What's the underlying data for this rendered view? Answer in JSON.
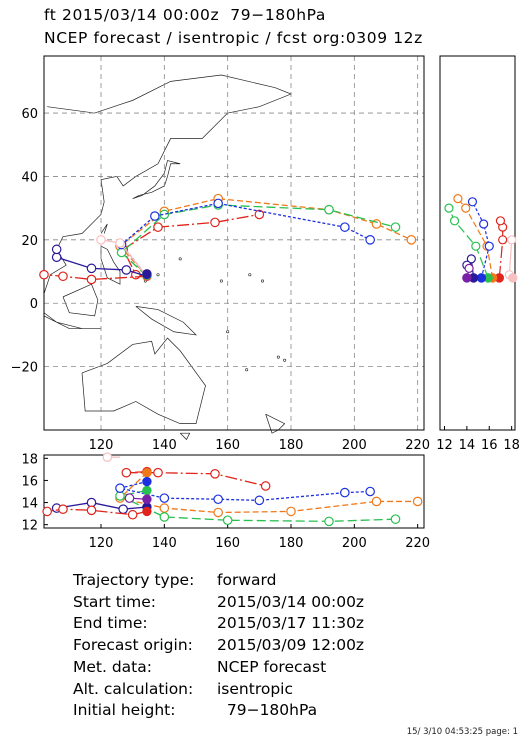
{
  "header": {
    "line1": "ft 2015/03/14 00:00z  79−180hPa",
    "line2": "NCEP forecast / isentropic / fcst org:0309 12z"
  },
  "info": [
    {
      "label": "Trajectory type:",
      "value": "forward"
    },
    {
      "label": "Start time:",
      "value": "2015/03/14 00:00z"
    },
    {
      "label": "End time:",
      "value": "2015/03/17 11:30z"
    },
    {
      "label": "Forecast origin:",
      "value": "2015/03/09 12:00z"
    },
    {
      "label": "Met. data:",
      "value": "NCEP forecast"
    },
    {
      "label": "Alt. calculation:",
      "value": "isentropic"
    },
    {
      "label": "Initial height:",
      "value": "  79−180hPa"
    }
  ],
  "footer": "15/ 3/10 04:53:25 page: 1",
  "colors": {
    "red": "#e0241c",
    "orange": "#f07818",
    "green": "#28c050",
    "blue": "#1c30e0",
    "navy": "#2a1a9a",
    "purple": "#7a20a8",
    "pink": "#f8c0c0"
  },
  "chart_data": [
    {
      "type": "line",
      "title": "map panel (trajectories over lon/lat)",
      "x_ticks": [
        120,
        140,
        160,
        180,
        200,
        220
      ],
      "y_ticks": [
        -20,
        0,
        20,
        40,
        60
      ],
      "xlim": [
        102,
        222
      ],
      "ylim": [
        -40,
        78
      ],
      "grid": true,
      "series": [
        {
          "color": "red",
          "points": [
            [
              134.5,
              8.5
            ],
            [
              131,
              9
            ],
            [
              127,
              17
            ],
            [
              138,
              24
            ],
            [
              156,
              25.5
            ],
            [
              170,
              28
            ]
          ]
        },
        {
          "color": "orange",
          "points": [
            [
              134.5,
              8.5
            ],
            [
              126,
              18
            ],
            [
              140,
              29
            ],
            [
              157,
              33
            ],
            [
              192,
              29.5
            ],
            [
              207,
              25
            ],
            [
              218,
              20
            ]
          ]
        },
        {
          "color": "green",
          "points": [
            [
              134.5,
              8.5
            ],
            [
              126.5,
              16
            ],
            [
              140,
              28
            ],
            [
              157,
              31
            ],
            [
              192,
              29.5
            ],
            [
              213,
              24
            ]
          ]
        },
        {
          "color": "blue",
          "points": [
            [
              134.5,
              8.5
            ],
            [
              126.5,
              18.5
            ],
            [
              137,
              27.5
            ],
            [
              157,
              31.5
            ],
            [
              197,
              24
            ],
            [
              205,
              20
            ]
          ]
        },
        {
          "color": "navy",
          "points": [
            [
              134.5,
              8.5
            ],
            [
              128,
              10.5
            ],
            [
              117,
              11
            ],
            [
              106,
              14.5
            ],
            [
              106,
              17
            ]
          ]
        },
        {
          "color": "red",
          "points": [
            [
              134.5,
              8.5
            ],
            [
              117,
              7.5
            ],
            [
              108,
              8.5
            ],
            [
              102,
              9
            ]
          ]
        },
        {
          "color": "pink",
          "points": [
            [
              134.5,
              8.5
            ],
            [
              126,
              19
            ],
            [
              120,
              20
            ]
          ]
        }
      ]
    },
    {
      "type": "line",
      "title": "side panel",
      "x_ticks": [
        12,
        14,
        16,
        18
      ],
      "xlim": [
        11.6,
        18.3
      ],
      "ylim": [
        -40,
        78
      ]
    },
    {
      "type": "line",
      "title": "bottom panel",
      "x_ticks": [
        120,
        140,
        160,
        180,
        200,
        220
      ],
      "y_ticks": [
        12,
        14,
        16,
        18
      ],
      "xlim": [
        102,
        222
      ],
      "ylim": [
        11.7,
        18.3
      ],
      "series": [
        {
          "color": "red",
          "points": [
            [
              134.5,
              16.8
            ],
            [
              128,
              16.7
            ],
            [
              138,
              16.7
            ],
            [
              156,
              16.6
            ],
            [
              172,
              15.5
            ]
          ]
        },
        {
          "color": "orange",
          "points": [
            [
              134.5,
              16.7
            ],
            [
              126,
              14.4
            ],
            [
              140,
              13.5
            ],
            [
              157,
              13.1
            ],
            [
              180,
              13.2
            ],
            [
              207,
              14.1
            ],
            [
              220,
              14.1
            ]
          ]
        },
        {
          "color": "green",
          "points": [
            [
              134.5,
              15.1
            ],
            [
              126,
              14.6
            ],
            [
              140,
              12.7
            ],
            [
              160,
              12.4
            ],
            [
              192,
              12.3
            ],
            [
              213,
              12.5
            ]
          ]
        },
        {
          "color": "blue",
          "points": [
            [
              134.5,
              15.9
            ],
            [
              126,
              15.3
            ],
            [
              140,
              14.4
            ],
            [
              157,
              14.3
            ],
            [
              170,
              14.2
            ],
            [
              197,
              14.9
            ],
            [
              205,
              15
            ]
          ]
        },
        {
          "color": "navy",
          "points": [
            [
              134.5,
              13.6
            ],
            [
              127,
              13.4
            ],
            [
              117,
              14
            ],
            [
              106,
              13.5
            ]
          ]
        },
        {
          "color": "purple",
          "points": [
            [
              134.5,
              14.3
            ],
            [
              129,
              14.4
            ]
          ]
        },
        {
          "color": "red",
          "points": [
            [
              134.5,
              13.2
            ],
            [
              130,
              12.9
            ],
            [
              117,
              13.3
            ],
            [
              108,
              13.4
            ],
            [
              103,
              13.2
            ]
          ]
        },
        {
          "color": "pink",
          "points": [
            [
              126,
              18.1
            ],
            [
              122,
              18.1
            ]
          ]
        }
      ]
    }
  ]
}
